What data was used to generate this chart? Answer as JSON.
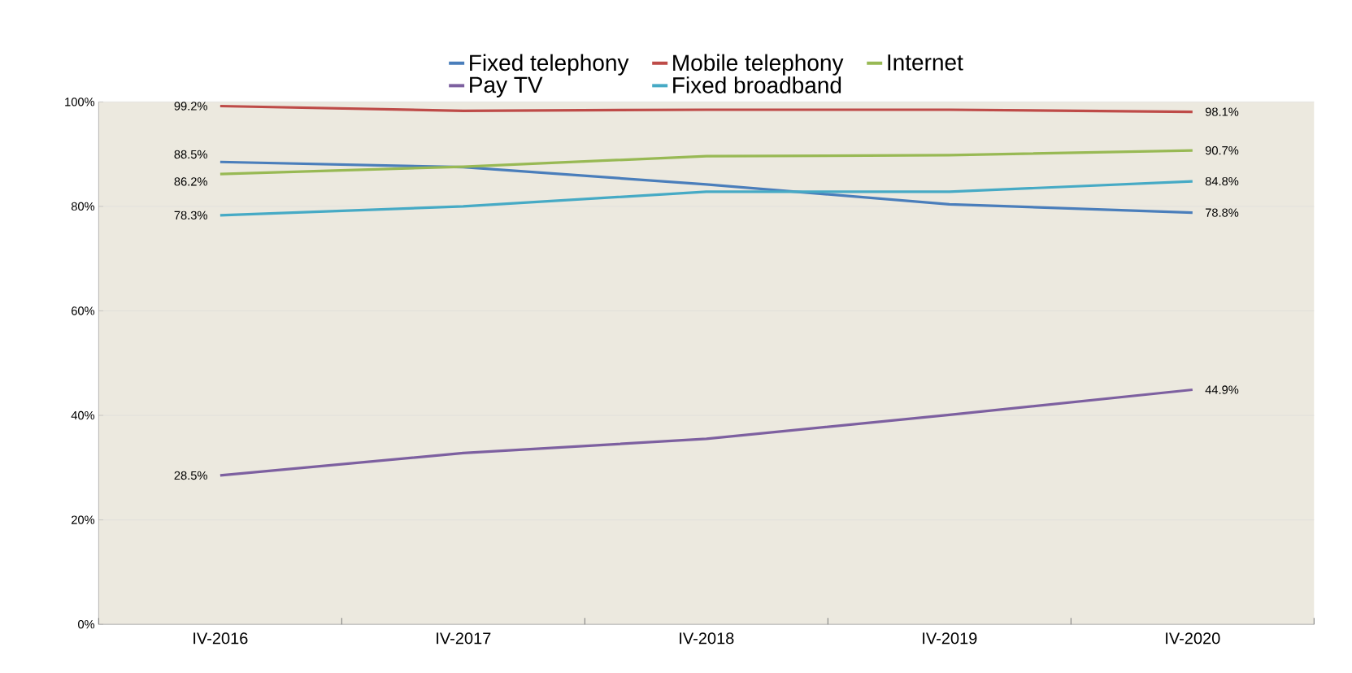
{
  "chart_data": {
    "type": "line",
    "categories": [
      "IV-2016",
      "IV-2017",
      "IV-2018",
      "IV-2019",
      "IV-2020"
    ],
    "series": [
      {
        "name": "Fixed telephony",
        "color": "#4a7ebb",
        "values": [
          88.5,
          87.5,
          84.2,
          80.4,
          78.8
        ],
        "value_labels": [
          "88.5%",
          null,
          null,
          null,
          "78.8%"
        ]
      },
      {
        "name": "Mobile telephony",
        "color": "#be4b48",
        "values": [
          99.2,
          98.3,
          98.5,
          98.5,
          98.1
        ],
        "value_labels": [
          "99.2%",
          null,
          null,
          null,
          "98.1%"
        ]
      },
      {
        "name": "Internet",
        "color": "#98b954",
        "values": [
          86.2,
          87.6,
          89.6,
          89.8,
          90.7
        ],
        "value_labels": [
          "86.2%",
          null,
          null,
          null,
          "90.7%"
        ]
      },
      {
        "name": "Pay TV",
        "color": "#7d60a0",
        "values": [
          28.5,
          32.8,
          35.5,
          40.1,
          44.9
        ],
        "value_labels": [
          "28.5%",
          null,
          null,
          null,
          "44.9%"
        ]
      },
      {
        "name": "Fixed broadband",
        "color": "#46aac5",
        "values": [
          78.3,
          80.0,
          82.8,
          82.8,
          84.8
        ],
        "value_labels": [
          "78.3%",
          null,
          null,
          null,
          "84.8%"
        ]
      }
    ],
    "ylim": [
      0,
      100
    ],
    "yticks": [
      {
        "value": 0,
        "label": "0%"
      },
      {
        "value": 20,
        "label": "20%"
      },
      {
        "value": 40,
        "label": "40%"
      },
      {
        "value": 60,
        "label": "60%"
      },
      {
        "value": 80,
        "label": "80%"
      },
      {
        "value": 100,
        "label": "100%"
      }
    ],
    "grid": "y",
    "legend": "top",
    "marker": "none",
    "line_style": "solid"
  }
}
